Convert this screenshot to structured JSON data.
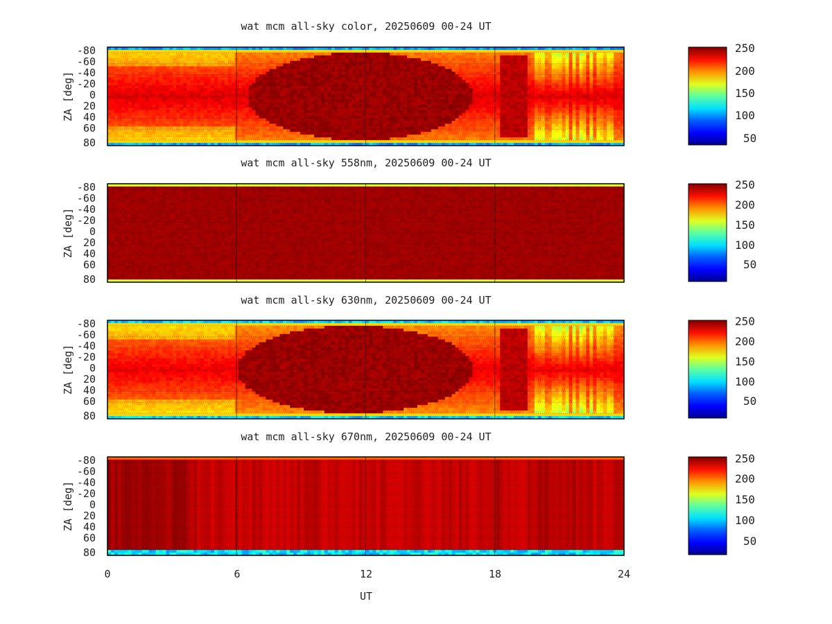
{
  "figure": {
    "x_axis_label": "UT",
    "x_ticks": [
      "0",
      "6",
      "12",
      "18",
      "24"
    ],
    "y_axis_label": "ZA [deg]",
    "y_ticks": [
      "-80",
      "-60",
      "-40",
      "-20",
      "0",
      "20",
      "40",
      "60",
      "80"
    ],
    "colorbar_ticks_a": [
      "250",
      "200",
      "150",
      "100",
      "50"
    ],
    "colorbar_ticks_b": [
      "250",
      "200",
      "150",
      "100",
      "50"
    ]
  },
  "chart_data": [
    {
      "type": "heatmap",
      "title": "wat mcm all-sky color, 20250609 00-24 UT",
      "xlabel": "UT",
      "ylabel": "ZA [deg]",
      "xlim": [
        0,
        24
      ],
      "ylim": [
        -90,
        90
      ],
      "x_ticks": [
        0,
        6,
        12,
        18,
        24
      ],
      "y_ticks": [
        -80,
        -60,
        -40,
        -20,
        0,
        20,
        40,
        60,
        80
      ],
      "colorbar": {
        "range": [
          0,
          255
        ],
        "ticks": [
          250,
          200,
          150,
          100,
          50
        ],
        "colormap": "jet"
      },
      "grid": true,
      "description_values": {
        "edge_value": 60,
        "body_value_night": 232,
        "body_value_day": 248,
        "daytime_dark_core_ut": [
          6.5,
          17.0
        ]
      }
    },
    {
      "type": "heatmap",
      "title": "wat mcm all-sky 558nm, 20250609 00-24 UT",
      "xlabel": "UT",
      "ylabel": "ZA [deg]",
      "xlim": [
        0,
        24
      ],
      "ylim": [
        -90,
        90
      ],
      "x_ticks": [
        0,
        6,
        12,
        18,
        24
      ],
      "y_ticks": [
        -80,
        -60,
        -40,
        -20,
        0,
        20,
        40,
        60,
        80
      ],
      "colorbar": {
        "range": [
          0,
          255
        ],
        "ticks": [
          250,
          200,
          150,
          100,
          50
        ],
        "colormap": "jet"
      },
      "grid": true,
      "description_values": {
        "edge_value": 150,
        "body_value": 250
      }
    },
    {
      "type": "heatmap",
      "title": "wat mcm all-sky 630nm, 20250609 00-24 UT",
      "xlabel": "UT",
      "ylabel": "ZA [deg]",
      "xlim": [
        0,
        24
      ],
      "ylim": [
        -90,
        90
      ],
      "x_ticks": [
        0,
        6,
        12,
        18,
        24
      ],
      "y_ticks": [
        -80,
        -60,
        -40,
        -20,
        0,
        20,
        40,
        60,
        80
      ],
      "colorbar": {
        "range": [
          0,
          255
        ],
        "ticks": [
          250,
          200,
          150,
          100,
          50
        ],
        "colormap": "jet"
      },
      "grid": true,
      "description_values": {
        "edge_value": 70,
        "body_value_night": 228,
        "body_value_day": 248,
        "daytime_dark_core_ut": [
          6.0,
          17.0
        ]
      }
    },
    {
      "type": "heatmap",
      "title": "wat mcm all-sky 670nm, 20250609 00-24 UT",
      "xlabel": "UT",
      "ylabel": "ZA [deg]",
      "xlim": [
        0,
        24
      ],
      "ylim": [
        -90,
        90
      ],
      "x_ticks": [
        0,
        6,
        12,
        18,
        24
      ],
      "y_ticks": [
        -80,
        -60,
        -40,
        -20,
        0,
        20,
        40,
        60,
        80
      ],
      "colorbar": {
        "range": [
          0,
          255
        ],
        "ticks": [
          250,
          200,
          150,
          100,
          50
        ],
        "colormap": "jet"
      },
      "grid": true,
      "description_values": {
        "edge_value_bottom": 110,
        "body_value": 238,
        "darker_band_ut": [
          0,
          3.7
        ]
      }
    }
  ]
}
